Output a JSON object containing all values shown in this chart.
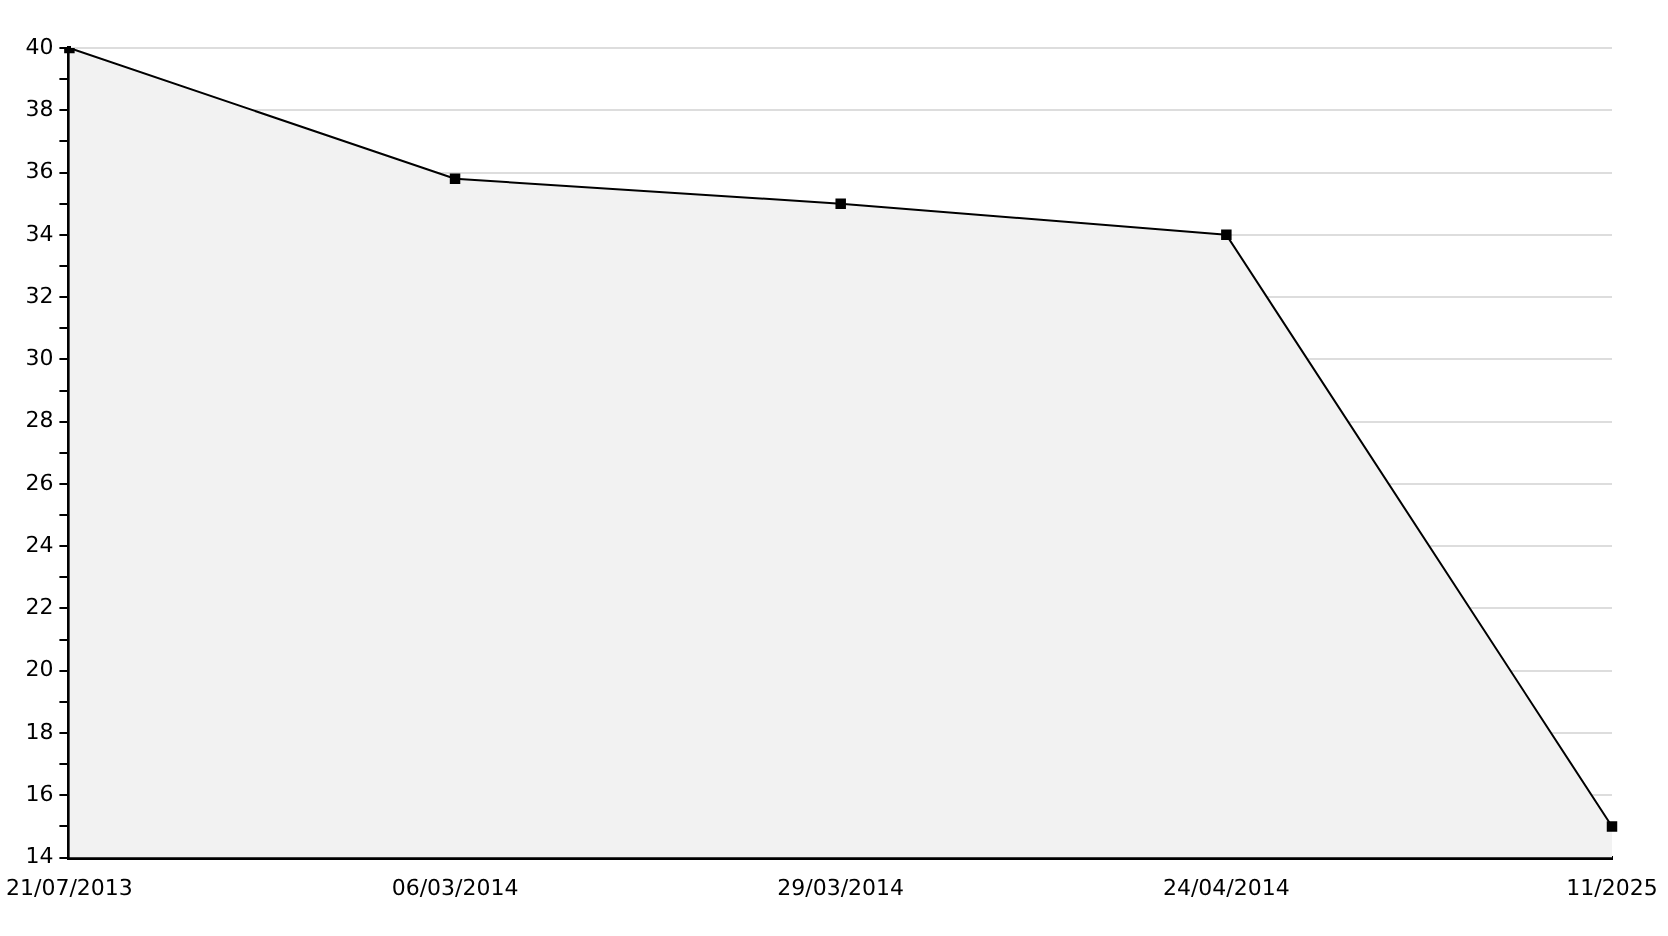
{
  "chart_data": {
    "type": "area",
    "categories": [
      "21/07/2013",
      "06/03/2014",
      "29/03/2014",
      "24/04/2014",
      "11/2025"
    ],
    "series": [
      {
        "color": "#000000",
        "values": [
          40,
          35.8,
          35,
          34,
          15
        ]
      }
    ],
    "ylim": [
      14,
      40
    ],
    "yticks": [
      14,
      {
        "value": 15,
        "label": null
      },
      16,
      {
        "value": 17,
        "label": null
      },
      18,
      {
        "value": 19,
        "label": null
      },
      20,
      {
        "value": 21,
        "label": null
      },
      22,
      {
        "value": 23,
        "label": null
      },
      24,
      {
        "value": 25,
        "label": null
      },
      26,
      {
        "value": 27,
        "label": null
      },
      28,
      {
        "value": 29,
        "label": null
      },
      30,
      {
        "value": 31,
        "label": null
      },
      32,
      {
        "value": 33,
        "label": null
      },
      34,
      {
        "value": 35,
        "label": null
      },
      36,
      {
        "value": 37,
        "label": null
      },
      38,
      {
        "value": 39,
        "label": null
      },
      40
    ],
    "grid": "y",
    "legend": false,
    "marker": "square",
    "line_style": "solid"
  }
}
